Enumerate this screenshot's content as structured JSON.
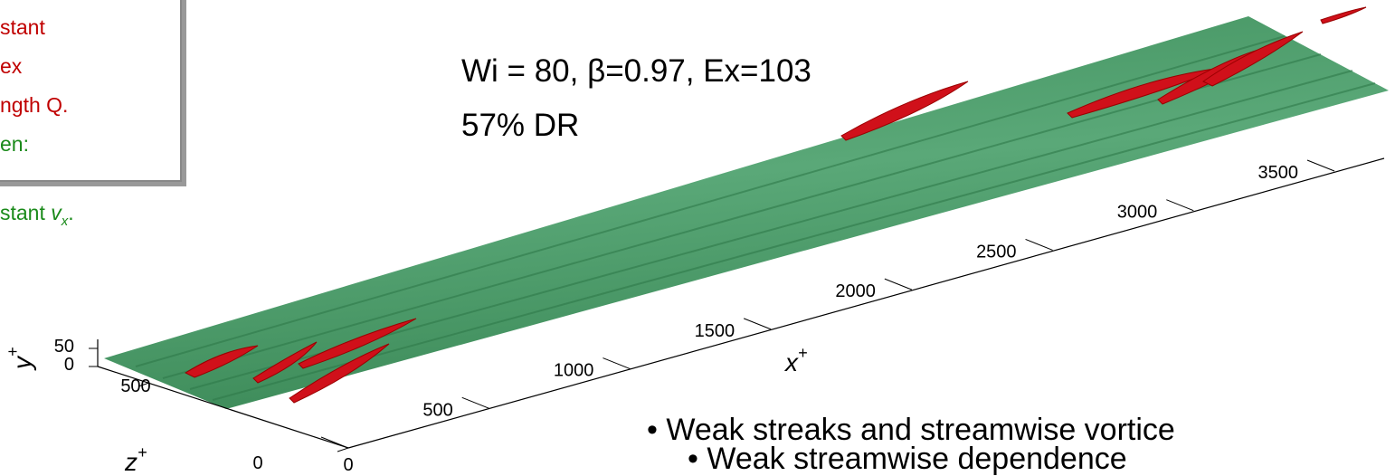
{
  "legend": {
    "lines": [
      "stant",
      "ex",
      "ngth Q.",
      "en:"
    ],
    "last": {
      "text": "stant ",
      "var": "v",
      "sub": "x",
      "end": "."
    }
  },
  "title": {
    "line1": "Wi = 80, β=0.97, Ex=103",
    "line2": "57% DR"
  },
  "axes": {
    "x": {
      "label": "x",
      "sup": "+",
      "ticks": [
        0,
        500,
        1000,
        1500,
        2000,
        2500,
        3000,
        3500
      ]
    },
    "z": {
      "label": "z",
      "sup": "+",
      "ticks": [
        0,
        500
      ]
    },
    "y": {
      "label": "y",
      "sup": "+",
      "ticks": [
        0,
        50
      ]
    }
  },
  "bullets": [
    "• Weak streaks and streamwise vortice",
    "• Weak streamwise dependence"
  ]
}
